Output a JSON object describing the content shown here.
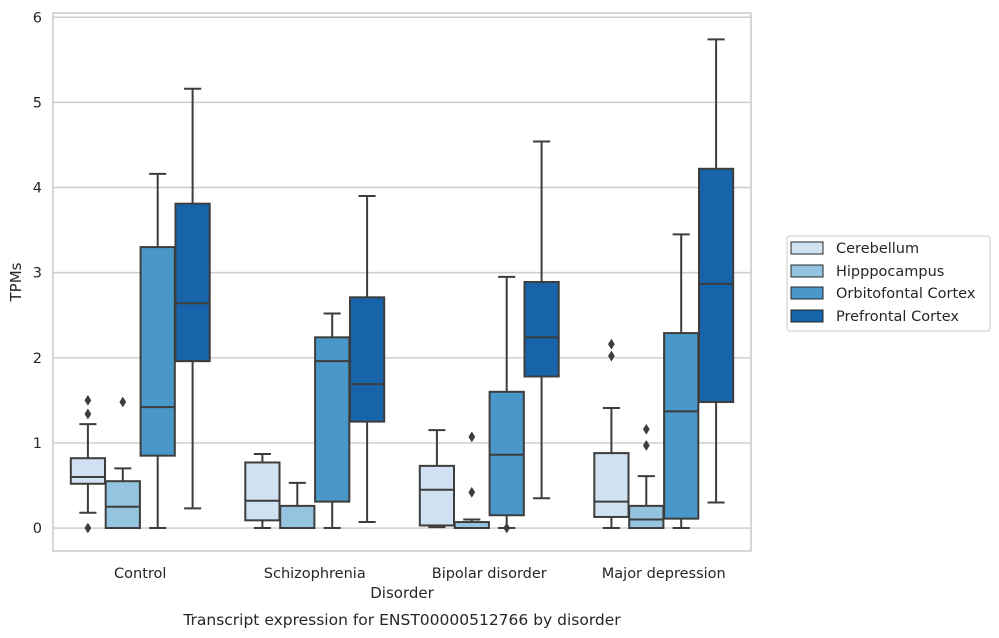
{
  "caption": "Transcript expression for ENST00000512766 by disorder",
  "chart_data": {
    "type": "box",
    "title": "",
    "xlabel": "Disorder",
    "ylabel": "TPMs",
    "categories": [
      "Control",
      "Schizophrenia",
      "Bipolar disorder",
      "Major depression"
    ],
    "ylim": [
      -0.27,
      6.05
    ],
    "yticks": [
      0,
      1,
      2,
      3,
      4,
      5,
      6
    ],
    "grid": "horizontal",
    "legend_position": "right, outside plot",
    "series": [
      {
        "name": "Cerebellum",
        "color": "#d0e1f2",
        "boxes": [
          {
            "whislo": 0.18,
            "q1": 0.52,
            "med": 0.6,
            "q3": 0.82,
            "whishi": 1.22,
            "fliers": [
              1.5,
              1.34,
              0.0
            ]
          },
          {
            "whislo": 0.0,
            "q1": 0.09,
            "med": 0.32,
            "q3": 0.77,
            "whishi": 0.87,
            "fliers": []
          },
          {
            "whislo": 0.01,
            "q1": 0.03,
            "med": 0.45,
            "q3": 0.73,
            "whishi": 1.15,
            "fliers": []
          },
          {
            "whislo": 0.0,
            "q1": 0.13,
            "med": 0.31,
            "q3": 0.88,
            "whishi": 1.41,
            "fliers": [
              2.16,
              2.02
            ]
          }
        ]
      },
      {
        "name": "Hipppocampus",
        "color": "#94c4df",
        "boxes": [
          {
            "whislo": 0.0,
            "q1": 0.0,
            "med": 0.25,
            "q3": 0.55,
            "whishi": 0.7,
            "fliers": [
              1.48
            ]
          },
          {
            "whislo": 0.0,
            "q1": 0.0,
            "med": 0.0,
            "q3": 0.26,
            "whishi": 0.53,
            "fliers": []
          },
          {
            "whislo": 0.0,
            "q1": 0.0,
            "med": 0.0,
            "q3": 0.07,
            "whishi": 0.1,
            "fliers": [
              1.07,
              0.42
            ]
          },
          {
            "whislo": 0.0,
            "q1": 0.0,
            "med": 0.1,
            "q3": 0.26,
            "whishi": 0.61,
            "fliers": [
              1.16,
              0.97
            ]
          }
        ]
      },
      {
        "name": "Orbitofontal Cortex",
        "color": "#4a98c9",
        "boxes": [
          {
            "whislo": 0.0,
            "q1": 0.85,
            "med": 1.42,
            "q3": 3.3,
            "whishi": 4.16,
            "fliers": []
          },
          {
            "whislo": 0.0,
            "q1": 0.31,
            "med": 1.96,
            "q3": 2.24,
            "whishi": 2.52,
            "fliers": []
          },
          {
            "whislo": 0.0,
            "q1": 0.15,
            "med": 0.86,
            "q3": 1.6,
            "whishi": 2.95,
            "fliers": [
              0.0
            ]
          },
          {
            "whislo": 0.0,
            "q1": 0.11,
            "med": 1.37,
            "q3": 2.29,
            "whishi": 3.45,
            "fliers": []
          }
        ]
      },
      {
        "name": "Prefrontal Cortex",
        "color": "#1764ab",
        "boxes": [
          {
            "whislo": 0.23,
            "q1": 1.96,
            "med": 2.64,
            "q3": 3.81,
            "whishi": 5.16,
            "fliers": []
          },
          {
            "whislo": 0.07,
            "q1": 1.25,
            "med": 1.69,
            "q3": 2.71,
            "whishi": 3.9,
            "fliers": []
          },
          {
            "whislo": 0.35,
            "q1": 1.78,
            "med": 2.24,
            "q3": 2.89,
            "whishi": 4.54,
            "fliers": []
          },
          {
            "whislo": 0.3,
            "q1": 1.48,
            "med": 2.87,
            "q3": 4.22,
            "whishi": 5.74,
            "fliers": []
          }
        ]
      }
    ]
  }
}
